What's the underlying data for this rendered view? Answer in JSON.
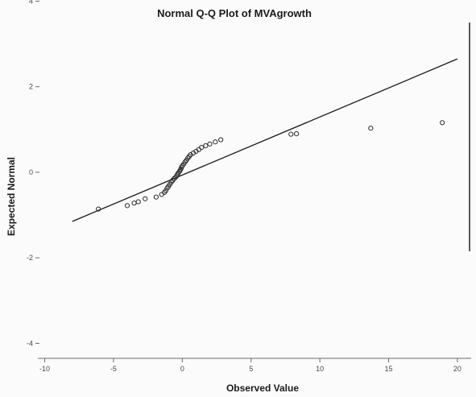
{
  "chart_data": {
    "type": "scatter",
    "title": "Normal Q-Q Plot of MVAgrowth",
    "xlabel": "Observed Value",
    "ylabel": "Expected Normal",
    "xlim": [
      -10.5,
      21
    ],
    "ylim": [
      -4.35,
      3.5
    ],
    "x_ticks": [
      -10,
      -5,
      0,
      5,
      10,
      15,
      20
    ],
    "x_tick_labels": [
      "-10",
      "-5",
      "0",
      "5",
      "10",
      "15",
      "20"
    ],
    "y_ticks": [
      -4,
      -2,
      0,
      2,
      4
    ],
    "y_tick_labels": [
      "-4",
      "-2",
      "0",
      "2",
      "4"
    ],
    "grid": false,
    "reference_line": {
      "x": [
        -8,
        20
      ],
      "y": [
        -1.15,
        2.65
      ]
    },
    "series": [
      {
        "points": [
          [
            -6.1,
            -0.86
          ],
          [
            -4.0,
            -0.78
          ],
          [
            -3.5,
            -0.72
          ],
          [
            -3.2,
            -0.69
          ],
          [
            -2.7,
            -0.62
          ],
          [
            -1.9,
            -0.58
          ],
          [
            -1.5,
            -0.52
          ],
          [
            -1.3,
            -0.47
          ],
          [
            -1.2,
            -0.43
          ],
          [
            -1.1,
            -0.37
          ],
          [
            -1.0,
            -0.33
          ],
          [
            -0.9,
            -0.28
          ],
          [
            -0.8,
            -0.23
          ],
          [
            -0.7,
            -0.19
          ],
          [
            -0.6,
            -0.15
          ],
          [
            -0.5,
            -0.12
          ],
          [
            -0.4,
            -0.08
          ],
          [
            -0.35,
            -0.05
          ],
          [
            -0.3,
            -0.02
          ],
          [
            -0.2,
            0.02
          ],
          [
            -0.15,
            0.05
          ],
          [
            -0.1,
            0.08
          ],
          [
            -0.05,
            0.12
          ],
          [
            0.0,
            0.15
          ],
          [
            0.1,
            0.19
          ],
          [
            0.2,
            0.24
          ],
          [
            0.3,
            0.28
          ],
          [
            0.4,
            0.33
          ],
          [
            0.5,
            0.37
          ],
          [
            0.6,
            0.41
          ],
          [
            0.8,
            0.45
          ],
          [
            1.0,
            0.49
          ],
          [
            1.2,
            0.53
          ],
          [
            1.4,
            0.58
          ],
          [
            1.7,
            0.62
          ],
          [
            2.0,
            0.66
          ],
          [
            2.4,
            0.71
          ],
          [
            2.8,
            0.76
          ],
          [
            7.9,
            0.89
          ],
          [
            8.3,
            0.9
          ],
          [
            13.7,
            1.03
          ],
          [
            18.9,
            1.16
          ]
        ]
      }
    ]
  }
}
